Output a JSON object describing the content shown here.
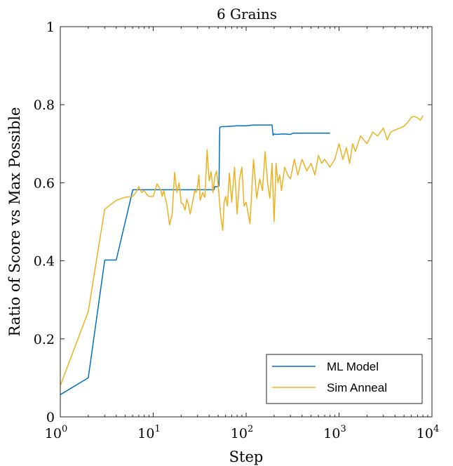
{
  "chart_data": {
    "type": "line",
    "title": "6 Grains",
    "xlabel": "Step",
    "ylabel": "Ratio of Score vs Max Possible",
    "xscale": "log",
    "xlim": [
      1,
      10000
    ],
    "ylim": [
      0,
      1
    ],
    "x_ticks": [
      {
        "value": 1,
        "base": "10",
        "exp": "0"
      },
      {
        "value": 10,
        "base": "10",
        "exp": "1"
      },
      {
        "value": 100,
        "base": "10",
        "exp": "2"
      },
      {
        "value": 1000,
        "base": "10",
        "exp": "3"
      },
      {
        "value": 10000,
        "base": "10",
        "exp": "4"
      }
    ],
    "y_ticks": [
      {
        "value": 0,
        "label": "0"
      },
      {
        "value": 0.2,
        "label": "0.2"
      },
      {
        "value": 0.4,
        "label": "0.4"
      },
      {
        "value": 0.6,
        "label": "0.6"
      },
      {
        "value": 0.8,
        "label": "0.8"
      },
      {
        "value": 1,
        "label": "1"
      }
    ],
    "legend_position": "bottom-right",
    "grid": false,
    "series": [
      {
        "name": "ML Model",
        "color": "#0072BD",
        "x": [
          1,
          2,
          3,
          3.02,
          4,
          6,
          6.02,
          45,
          46,
          50,
          51,
          52,
          55,
          60,
          80,
          100,
          120,
          150,
          190,
          195,
          200,
          210,
          250,
          300,
          320,
          400,
          600,
          800
        ],
        "y": [
          0.057,
          0.1,
          0.4,
          0.402,
          0.402,
          0.58,
          0.582,
          0.582,
          0.59,
          0.59,
          0.592,
          0.742,
          0.744,
          0.744,
          0.746,
          0.746,
          0.748,
          0.748,
          0.748,
          0.722,
          0.725,
          0.724,
          0.725,
          0.724,
          0.727,
          0.727,
          0.727,
          0.727
        ]
      },
      {
        "name": "Sim Anneal",
        "color": "#EDB120",
        "x": [
          1,
          2,
          3,
          4,
          5,
          6,
          6.5,
          7,
          7.5,
          8,
          8.5,
          9,
          10,
          11,
          12,
          12.5,
          13,
          13.5,
          14,
          15,
          16,
          17,
          18,
          19,
          20,
          21,
          22,
          23,
          24,
          25,
          26,
          27,
          28,
          29,
          30,
          31,
          32,
          33,
          34,
          35,
          36,
          38,
          40,
          42,
          44,
          46,
          48,
          50,
          53,
          56,
          58,
          60,
          63,
          66,
          70,
          75,
          80,
          85,
          90,
          95,
          100,
          110,
          120,
          130,
          140,
          150,
          160,
          170,
          180,
          190,
          200,
          210,
          220,
          230,
          240,
          260,
          280,
          300,
          330,
          360,
          400,
          450,
          500,
          550,
          600,
          650,
          700,
          800,
          900,
          1000,
          1100,
          1200,
          1300,
          1400,
          1500,
          1700,
          2000,
          2300,
          2600,
          3000,
          3300,
          3600,
          4000,
          4500,
          5000,
          5500,
          6000,
          6500,
          7000,
          7500,
          8000
        ],
        "y": [
          0.08,
          0.27,
          0.532,
          0.555,
          0.563,
          0.565,
          0.575,
          0.59,
          0.575,
          0.58,
          0.57,
          0.565,
          0.565,
          0.597,
          0.582,
          0.565,
          0.58,
          0.56,
          0.545,
          0.492,
          0.52,
          0.627,
          0.575,
          0.6,
          0.548,
          0.545,
          0.53,
          0.558,
          0.543,
          0.52,
          0.54,
          0.56,
          0.58,
          0.575,
          0.59,
          0.62,
          0.555,
          0.565,
          0.575,
          0.568,
          0.563,
          0.685,
          0.605,
          0.628,
          0.575,
          0.615,
          0.63,
          0.595,
          0.52,
          0.478,
          0.55,
          0.565,
          0.54,
          0.625,
          0.55,
          0.64,
          0.52,
          0.61,
          0.64,
          0.54,
          0.55,
          0.495,
          0.66,
          0.56,
          0.61,
          0.58,
          0.68,
          0.6,
          0.56,
          0.65,
          0.5,
          0.65,
          0.6,
          0.62,
          0.58,
          0.64,
          0.62,
          0.61,
          0.66,
          0.62,
          0.66,
          0.63,
          0.65,
          0.62,
          0.67,
          0.65,
          0.66,
          0.64,
          0.66,
          0.7,
          0.66,
          0.69,
          0.65,
          0.7,
          0.68,
          0.72,
          0.7,
          0.73,
          0.72,
          0.74,
          0.71,
          0.73,
          0.735,
          0.74,
          0.745,
          0.755,
          0.768,
          0.77,
          0.766,
          0.76,
          0.772
        ]
      }
    ]
  }
}
